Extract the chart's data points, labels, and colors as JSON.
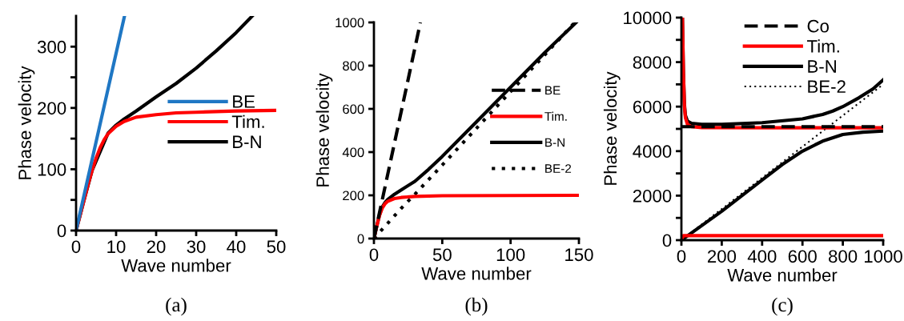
{
  "chart_data": [
    {
      "type": "line",
      "xlabel": "Wave number",
      "ylabel": "Phase velocity",
      "annotations": [
        "(a)"
      ],
      "xlim": [
        0,
        50
      ],
      "ylim": [
        0,
        350
      ],
      "xticks": [
        0,
        10,
        20,
        30,
        40,
        50
      ],
      "yticks": [
        0,
        {
          "value": 50,
          "label": null
        },
        100,
        {
          "value": 150,
          "label": null
        },
        200,
        {
          "value": 250,
          "label": null
        },
        300
      ],
      "legend": "right",
      "grid": false,
      "series": [
        {
          "name": "BE",
          "color": "#1f77c4",
          "line_style": "solid",
          "x": [
            0,
            12.1
          ],
          "values": [
            0,
            350
          ]
        },
        {
          "name": "Tim.",
          "color": "#ff0000",
          "line_style": "solid",
          "x": [
            0,
            1,
            2,
            3,
            4,
            5,
            6,
            7,
            8,
            10,
            12,
            15,
            20,
            25,
            30,
            40,
            50
          ],
          "values": [
            0,
            25,
            50,
            75,
            98,
            118,
            135,
            148,
            158,
            170,
            178,
            185,
            189,
            192,
            193,
            195,
            196
          ]
        },
        {
          "name": "B-N",
          "color": "#000000",
          "line_style": "solid",
          "x": [
            0,
            1,
            2,
            4,
            8,
            10,
            12,
            15,
            20,
            25,
            30,
            35,
            40,
            44
          ],
          "values": [
            0,
            25,
            50,
            98,
            159,
            172,
            182,
            195,
            218,
            240,
            265,
            293,
            323,
            350
          ]
        }
      ]
    },
    {
      "type": "line",
      "xlabel": "Wave number",
      "ylabel": "Phase velocity",
      "annotations": [
        "(b)"
      ],
      "xlim": [
        0,
        150
      ],
      "ylim": [
        0,
        1000
      ],
      "xticks": [
        0,
        50,
        100,
        150
      ],
      "yticks": [
        0,
        200,
        400,
        600,
        800,
        1000
      ],
      "legend": "right",
      "grid": false,
      "series": [
        {
          "name": "BE",
          "color": "#000000",
          "line_style": "dashed",
          "x": [
            0,
            34
          ],
          "values": [
            0,
            1000
          ]
        },
        {
          "name": "Tim.",
          "color": "#ff0000",
          "line_style": "solid",
          "x": [
            0,
            2,
            4,
            6,
            8,
            10,
            15,
            20,
            30,
            50,
            100,
            150
          ],
          "values": [
            0,
            55,
            105,
            140,
            160,
            172,
            185,
            190,
            195,
            198,
            199,
            200
          ]
        },
        {
          "name": "B-N",
          "color": "#000000",
          "line_style": "solid",
          "x": [
            0,
            2,
            4,
            6,
            8,
            10,
            15,
            20,
            30,
            40,
            50,
            75,
            100,
            125,
            148
          ],
          "values": [
            0,
            55,
            108,
            145,
            165,
            180,
            205,
            225,
            265,
            320,
            380,
            540,
            700,
            860,
            1000
          ]
        },
        {
          "name": "BE-2",
          "color": "#000000",
          "line_style": "dotted",
          "x": [
            0,
            10,
            20,
            30,
            50,
            75,
            100,
            125,
            147
          ],
          "values": [
            0,
            70,
            140,
            205,
            340,
            510,
            680,
            850,
            1000
          ]
        }
      ]
    },
    {
      "type": "line",
      "xlabel": "Wave number",
      "ylabel": "Phase velocity",
      "annotations": [
        "(c)"
      ],
      "xlim": [
        0,
        1000
      ],
      "ylim": [
        0,
        10000
      ],
      "xticks": [
        0,
        200,
        400,
        600,
        800,
        1000
      ],
      "yticks": [
        0,
        {
          "value": 1000,
          "label": null
        },
        2000,
        {
          "value": 3000,
          "label": null
        },
        4000,
        {
          "value": 5000,
          "label": null
        },
        6000,
        {
          "value": 7000,
          "label": null
        },
        8000,
        {
          "value": 9000,
          "label": null
        },
        10000
      ],
      "legend": "top right",
      "grid": false,
      "series": [
        {
          "name": "Co",
          "color": "#000000",
          "line_style": "dashed",
          "x": [
            0,
            1000
          ],
          "values": [
            5100,
            5100
          ]
        },
        {
          "name": "Tim.",
          "color": "#ff0000",
          "line_style": "solid",
          "x": [
            5,
            10,
            15,
            20,
            30,
            50,
            100,
            500,
            1000
          ],
          "values": [
            10000,
            7500,
            6000,
            5500,
            5200,
            5100,
            5060,
            5050,
            5050
          ]
        },
        {
          "color": "#ff0000",
          "line_style": "solid",
          "x": [
            0,
            10,
            50,
            1000
          ],
          "values": [
            0,
            200,
            200,
            200
          ]
        },
        {
          "name": "B-N",
          "color": "#000000",
          "line_style": "solid",
          "x": [
            5,
            10,
            15,
            20,
            30,
            50,
            100,
            200,
            400,
            600,
            700,
            750,
            800,
            880,
            950,
            1000
          ],
          "values": [
            10000,
            7500,
            6100,
            5600,
            5350,
            5250,
            5200,
            5200,
            5280,
            5450,
            5650,
            5800,
            6000,
            6400,
            6800,
            7200
          ]
        },
        {
          "color": "#000000",
          "line_style": "solid",
          "x": [
            0,
            200,
            400,
            500,
            600,
            700,
            800,
            900,
            1000
          ],
          "values": [
            0,
            1300,
            2700,
            3400,
            4000,
            4450,
            4750,
            4850,
            4900
          ]
        },
        {
          "name": "BE-2",
          "color": "#000000",
          "line_style": "dotted",
          "x": [
            0,
            500,
            1000
          ],
          "values": [
            0,
            3500,
            7000
          ]
        }
      ]
    }
  ]
}
